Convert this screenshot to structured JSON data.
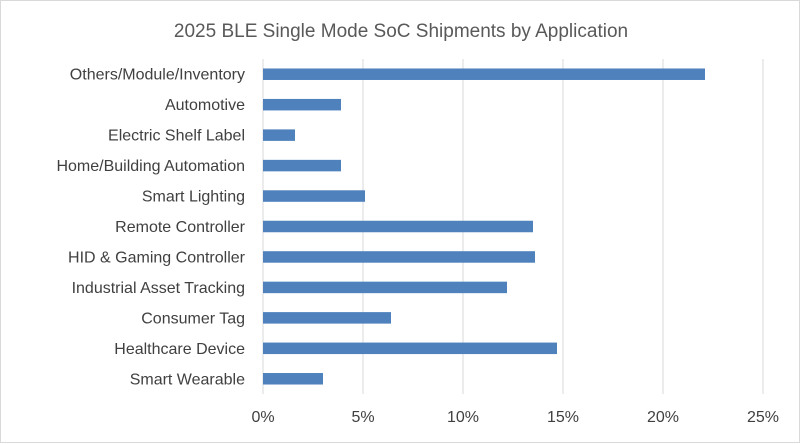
{
  "chart_data": {
    "type": "bar",
    "orientation": "horizontal",
    "title": "2025 BLE Single Mode SoC Shipments by Application",
    "categories": [
      "Others/Module/Inventory",
      "Automotive",
      "Electric Shelf Label",
      "Home/Building Automation",
      "Smart Lighting",
      "Remote Controller",
      "HID & Gaming Controller",
      "Industrial Asset Tracking",
      "Consumer Tag",
      "Healthcare Device",
      "Smart Wearable"
    ],
    "values": [
      22.1,
      3.9,
      1.6,
      3.9,
      5.1,
      13.5,
      13.6,
      12.2,
      6.4,
      14.7,
      3.0
    ],
    "xlim": [
      0,
      25
    ],
    "xticks": [
      "0%",
      "5%",
      "10%",
      "15%",
      "20%",
      "25%"
    ],
    "xtick_values": [
      0,
      5,
      10,
      15,
      20,
      25
    ],
    "grid": "vertical",
    "legend": "none",
    "bar_color": "#4f81bd",
    "grid_color": "#d9d9d9"
  }
}
